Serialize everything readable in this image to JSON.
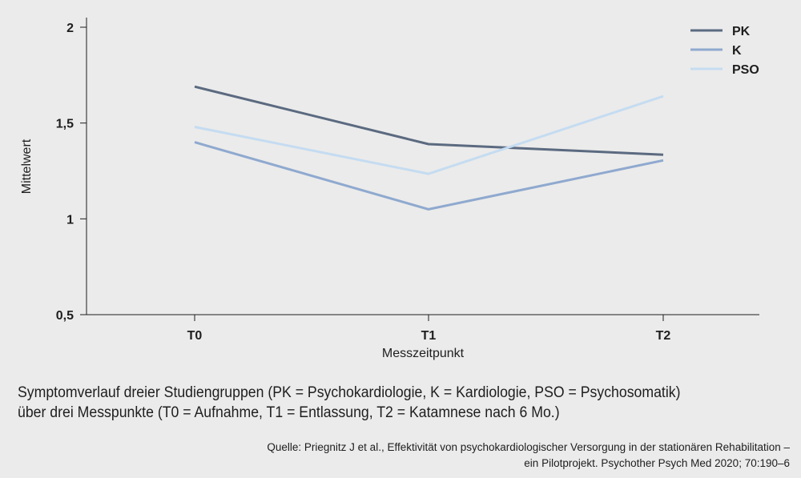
{
  "chart_data": {
    "type": "line",
    "categories": [
      "T0",
      "T1",
      "T2"
    ],
    "series": [
      {
        "name": "PK",
        "color": "#5b6a80",
        "values": [
          1.69,
          1.39,
          1.335
        ]
      },
      {
        "name": "K",
        "color": "#8fa9cf",
        "values": [
          1.4,
          1.05,
          1.305
        ]
      },
      {
        "name": "PSO",
        "color": "#c5dcf1",
        "values": [
          1.48,
          1.235,
          1.64
        ]
      }
    ],
    "yticks": [
      {
        "value": 0.5,
        "label": "0,5"
      },
      {
        "value": 1,
        "label": "1"
      },
      {
        "value": 1.5,
        "label": "1,5"
      },
      {
        "value": 2,
        "label": "2"
      }
    ],
    "ylim": [
      0.5,
      2
    ],
    "xlabel": "Messzeitpunkt",
    "ylabel": "Mittelwert",
    "grid": false,
    "legend_position": "top-right"
  },
  "caption": {
    "line1": "Symptomverlauf dreier Studiengruppen (PK = Psychokardiologie, K = Kardiologie, PSO = Psychosomatik)",
    "line2": "über drei Messpunkte (T0 = Aufnahme, T1 = Entlassung, T2 = Katamnese nach 6 Mo.)"
  },
  "source": {
    "line1": "Quelle: Priegnitz J et al., Effektivität von psychokardiologischer Versorgung in der stationären Rehabilitation –",
    "line2": "ein Pilotprojekt. Psychother Psych Med 2020; 70:190–6"
  }
}
